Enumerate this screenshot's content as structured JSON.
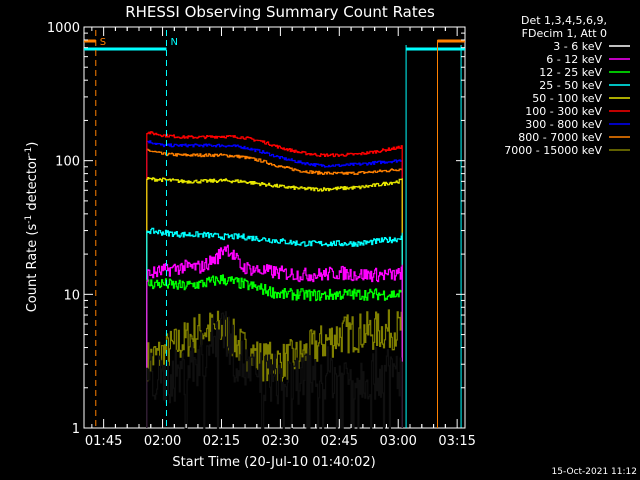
{
  "chart_data": {
    "type": "line",
    "title": "RHESSI Observing Summary Count Rates",
    "xlabel": "Start Time (20-Jul-10 01:40:02)",
    "ylabel_main": "Count Rate (s",
    "ylabel_sup1": "-1",
    "ylabel_mid": " detector",
    "ylabel_sup2": "-1",
    "ylabel_end": ")",
    "yscale": "log",
    "ylim": [
      1,
      1000
    ],
    "xlim_minutes": [
      100,
      197
    ],
    "y_ticks": [
      {
        "value": 1000,
        "label": "1000"
      },
      {
        "value": 100,
        "label": "100"
      },
      {
        "value": 10,
        "label": "10"
      },
      {
        "value": 1,
        "label": "1"
      }
    ],
    "x_ticks": [
      {
        "minute": 105,
        "label": "01:45"
      },
      {
        "minute": 120,
        "label": "02:00"
      },
      {
        "minute": 135,
        "label": "02:15"
      },
      {
        "minute": 150,
        "label": "02:30"
      },
      {
        "minute": 165,
        "label": "02:45"
      },
      {
        "minute": 180,
        "label": "03:00"
      },
      {
        "minute": 195,
        "label": "03:15"
      }
    ],
    "legend_header": [
      "Det 1,3,4,5,6,9,",
      "FDecim 1, Att 0"
    ],
    "series": [
      {
        "name": "3 - 6 keV",
        "color": "#000000",
        "x": [
          116,
          120,
          125,
          130,
          133,
          135,
          138,
          142,
          147,
          152,
          157,
          162,
          167,
          172,
          177,
          181
        ],
        "y": [
          2.5,
          2.2,
          2.6,
          3.4,
          4.5,
          6.5,
          3.5,
          2.6,
          2.4,
          2.2,
          2.5,
          2.6,
          2.4,
          2.5,
          2.6,
          2.6
        ]
      },
      {
        "name": "6 - 12 keV",
        "color": "#ff00ff",
        "x": [
          116,
          120,
          125,
          130,
          134,
          136,
          140,
          145,
          150,
          155,
          160,
          165,
          170,
          175,
          180,
          181
        ],
        "y": [
          14,
          15,
          16,
          16,
          19,
          23,
          16,
          15,
          14.5,
          14,
          14,
          14.5,
          14,
          14,
          14,
          15
        ]
      },
      {
        "name": "12 - 25 keV",
        "color": "#00ff00",
        "x": [
          116,
          120,
          125,
          130,
          135,
          140,
          145,
          150,
          155,
          160,
          165,
          170,
          175,
          180,
          181
        ],
        "y": [
          12,
          12,
          11.5,
          12,
          13,
          12,
          11,
          10,
          10,
          9.8,
          10,
          10,
          10,
          10,
          10
        ]
      },
      {
        "name": "25 - 50 keV",
        "color": "#00ffff",
        "x": [
          116,
          120,
          125,
          130,
          135,
          140,
          145,
          150,
          155,
          160,
          165,
          170,
          175,
          180,
          181
        ],
        "y": [
          30,
          29,
          28,
          28,
          27,
          27,
          26,
          25,
          24,
          24,
          24,
          24,
          25,
          26,
          28
        ]
      },
      {
        "name": "50 - 100 keV",
        "color": "#e6e600",
        "x": [
          116,
          120,
          125,
          130,
          135,
          140,
          145,
          150,
          155,
          160,
          165,
          170,
          175,
          180,
          181
        ],
        "y": [
          73,
          72,
          70,
          70,
          71,
          70,
          67,
          64,
          62,
          61,
          62,
          63,
          66,
          70,
          72
        ]
      },
      {
        "name": "100 - 300 keV",
        "color": "#ff0000",
        "x": [
          116,
          120,
          125,
          130,
          135,
          140,
          145,
          150,
          155,
          160,
          165,
          170,
          175,
          180,
          181
        ],
        "y": [
          163,
          155,
          150,
          150,
          152,
          150,
          140,
          125,
          115,
          110,
          110,
          112,
          118,
          125,
          128
        ]
      },
      {
        "name": "300 - 800 keV",
        "color": "#0000ff",
        "x": [
          116,
          120,
          125,
          130,
          135,
          140,
          145,
          150,
          155,
          160,
          165,
          170,
          175,
          180,
          181
        ],
        "y": [
          140,
          130,
          130,
          130,
          130,
          127,
          117,
          105,
          97,
          92,
          92,
          94,
          97,
          100,
          102
        ]
      },
      {
        "name": "800 - 7000 keV",
        "color": "#ff8000",
        "x": [
          116,
          120,
          125,
          130,
          135,
          140,
          145,
          150,
          155,
          160,
          165,
          170,
          175,
          180,
          181
        ],
        "y": [
          120,
          112,
          110,
          110,
          110,
          107,
          100,
          90,
          84,
          81,
          80,
          81,
          83,
          86,
          88
        ]
      },
      {
        "name": "7000 - 15000 keV",
        "color": "#808000",
        "x": [
          116,
          120,
          125,
          130,
          135,
          140,
          145,
          150,
          155,
          160,
          165,
          170,
          175,
          180,
          181
        ],
        "y": [
          3.2,
          3.6,
          4.4,
          5.4,
          5.5,
          4,
          3.2,
          3.1,
          3.4,
          4.2,
          5,
          5.2,
          5.3,
          5.5,
          5.8
        ]
      }
    ],
    "markers": [
      {
        "label": "S",
        "minute": 103,
        "color": "#ff8000"
      },
      {
        "label": "N",
        "minute": 121,
        "color": "#00ffff"
      }
    ],
    "cyan_bar_spans": [
      [
        100,
        121
      ],
      [
        182,
        197
      ]
    ],
    "orange_bar_spans": [
      [
        100,
        103
      ],
      [
        190,
        197
      ]
    ],
    "cyan_vlines": [
      121,
      182,
      196
    ],
    "orange_vlines": [
      103,
      190
    ]
  },
  "timestamp": "15-Oct-2021 11:12"
}
